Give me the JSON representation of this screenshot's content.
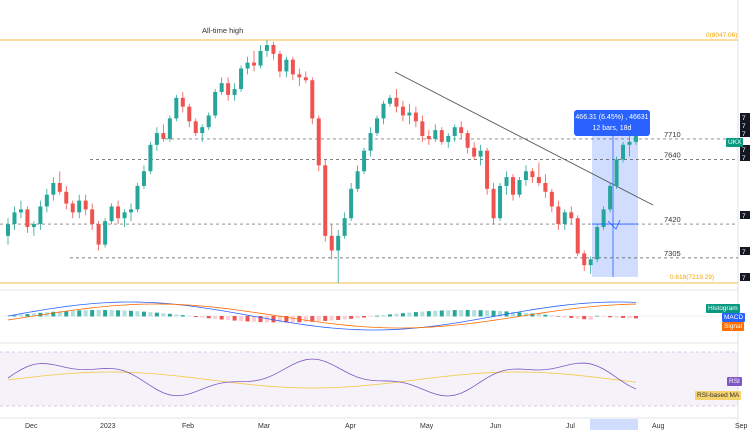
{
  "chart_data": {
    "type": "candlestick",
    "annotations": {
      "ath_label": "All-time high",
      "fib_0_label": "0(8047.06)",
      "fib_618_label": "0.618(7219.29)",
      "level_7710": "7710",
      "level_7640": "7640",
      "level_7420": "7420",
      "level_7305": "7305"
    },
    "x_ticks": [
      "Dec",
      "2023",
      "Feb",
      "Mar",
      "Apr",
      "May",
      "Jun",
      "Jul",
      "Aug",
      "Sep"
    ],
    "measure": {
      "line1": "466.31 (6.45%) , 46631",
      "line2": "12 bars, 18d"
    },
    "symbol_tag": "UKX",
    "macd_legend": {
      "histogram": "Histogram",
      "macd": "MACD",
      "signal": "Signal"
    },
    "rsi_legend": {
      "rsi": "RSI",
      "rsi_ma": "RSI-based MA"
    },
    "right_tags": [
      "7",
      "7",
      "7",
      "7",
      "7",
      "7",
      "7",
      "7"
    ],
    "candles": [
      [
        7380,
        7440,
        7350,
        7420
      ],
      [
        7420,
        7480,
        7400,
        7460
      ],
      [
        7460,
        7500,
        7440,
        7470
      ],
      [
        7470,
        7480,
        7390,
        7410
      ],
      [
        7410,
        7430,
        7380,
        7420
      ],
      [
        7420,
        7500,
        7400,
        7480
      ],
      [
        7480,
        7540,
        7460,
        7520
      ],
      [
        7520,
        7580,
        7500,
        7560
      ],
      [
        7560,
        7600,
        7520,
        7530
      ],
      [
        7530,
        7550,
        7470,
        7490
      ],
      [
        7490,
        7500,
        7440,
        7460
      ],
      [
        7460,
        7520,
        7440,
        7500
      ],
      [
        7500,
        7520,
        7450,
        7470
      ],
      [
        7470,
        7490,
        7400,
        7420
      ],
      [
        7420,
        7430,
        7330,
        7350
      ],
      [
        7350,
        7440,
        7340,
        7430
      ],
      [
        7430,
        7490,
        7420,
        7480
      ],
      [
        7480,
        7500,
        7420,
        7440
      ],
      [
        7440,
        7470,
        7410,
        7460
      ],
      [
        7460,
        7490,
        7430,
        7470
      ],
      [
        7470,
        7560,
        7460,
        7550
      ],
      [
        7550,
        7620,
        7540,
        7600
      ],
      [
        7600,
        7700,
        7590,
        7690
      ],
      [
        7690,
        7750,
        7670,
        7730
      ],
      [
        7730,
        7760,
        7700,
        7710
      ],
      [
        7710,
        7790,
        7700,
        7780
      ],
      [
        7780,
        7860,
        7770,
        7850
      ],
      [
        7850,
        7870,
        7800,
        7820
      ],
      [
        7820,
        7830,
        7750,
        7770
      ],
      [
        7770,
        7780,
        7720,
        7730
      ],
      [
        7730,
        7760,
        7700,
        7750
      ],
      [
        7750,
        7800,
        7740,
        7790
      ],
      [
        7790,
        7880,
        7780,
        7870
      ],
      [
        7870,
        7920,
        7860,
        7900
      ],
      [
        7900,
        7920,
        7840,
        7860
      ],
      [
        7860,
        7900,
        7840,
        7880
      ],
      [
        7880,
        7960,
        7870,
        7950
      ],
      [
        7950,
        7990,
        7930,
        7970
      ],
      [
        7970,
        8010,
        7940,
        7960
      ],
      [
        7960,
        8030,
        7950,
        8010
      ],
      [
        8010,
        8047,
        7990,
        8030
      ],
      [
        8030,
        8040,
        7980,
        8000
      ],
      [
        8000,
        8010,
        7920,
        7940
      ],
      [
        7940,
        7990,
        7920,
        7980
      ],
      [
        7980,
        7990,
        7910,
        7930
      ],
      [
        7930,
        7950,
        7890,
        7920
      ],
      [
        7920,
        7940,
        7900,
        7910
      ],
      [
        7910,
        7920,
        7760,
        7780
      ],
      [
        7780,
        7790,
        7600,
        7620
      ],
      [
        7620,
        7640,
        7360,
        7380
      ],
      [
        7380,
        7420,
        7300,
        7330
      ],
      [
        7330,
        7400,
        7219,
        7380
      ],
      [
        7380,
        7460,
        7370,
        7440
      ],
      [
        7440,
        7560,
        7430,
        7540
      ],
      [
        7540,
        7620,
        7530,
        7600
      ],
      [
        7600,
        7680,
        7590,
        7670
      ],
      [
        7670,
        7750,
        7650,
        7730
      ],
      [
        7730,
        7790,
        7720,
        7780
      ],
      [
        7780,
        7840,
        7760,
        7830
      ],
      [
        7830,
        7860,
        7820,
        7850
      ],
      [
        7850,
        7880,
        7800,
        7820
      ],
      [
        7820,
        7840,
        7770,
        7790
      ],
      [
        7790,
        7830,
        7760,
        7800
      ],
      [
        7800,
        7820,
        7750,
        7770
      ],
      [
        7770,
        7790,
        7700,
        7720
      ],
      [
        7720,
        7740,
        7690,
        7710
      ],
      [
        7710,
        7760,
        7700,
        7740
      ],
      [
        7740,
        7750,
        7690,
        7700
      ],
      [
        7700,
        7730,
        7680,
        7720
      ],
      [
        7720,
        7760,
        7700,
        7750
      ],
      [
        7750,
        7770,
        7710,
        7730
      ],
      [
        7730,
        7740,
        7660,
        7680
      ],
      [
        7680,
        7700,
        7640,
        7650
      ],
      [
        7650,
        7690,
        7620,
        7670
      ],
      [
        7670,
        7680,
        7520,
        7540
      ],
      [
        7540,
        7560,
        7420,
        7440
      ],
      [
        7440,
        7560,
        7430,
        7550
      ],
      [
        7550,
        7600,
        7520,
        7580
      ],
      [
        7580,
        7590,
        7500,
        7520
      ],
      [
        7520,
        7580,
        7510,
        7570
      ],
      [
        7570,
        7620,
        7550,
        7600
      ],
      [
        7600,
        7610,
        7560,
        7580
      ],
      [
        7580,
        7630,
        7550,
        7560
      ],
      [
        7560,
        7590,
        7510,
        7530
      ],
      [
        7530,
        7540,
        7460,
        7480
      ],
      [
        7480,
        7500,
        7400,
        7420
      ],
      [
        7420,
        7470,
        7400,
        7460
      ],
      [
        7460,
        7480,
        7420,
        7440
      ],
      [
        7440,
        7450,
        7310,
        7320
      ],
      [
        7320,
        7330,
        7260,
        7280
      ],
      [
        7280,
        7310,
        7250,
        7300
      ],
      [
        7300,
        7420,
        7290,
        7410
      ],
      [
        7410,
        7480,
        7400,
        7470
      ],
      [
        7470,
        7560,
        7460,
        7550
      ],
      [
        7550,
        7650,
        7540,
        7640
      ],
      [
        7640,
        7700,
        7630,
        7690
      ],
      [
        7690,
        7720,
        7650,
        7700
      ],
      [
        7700,
        7740,
        7690,
        7730
      ]
    ]
  }
}
